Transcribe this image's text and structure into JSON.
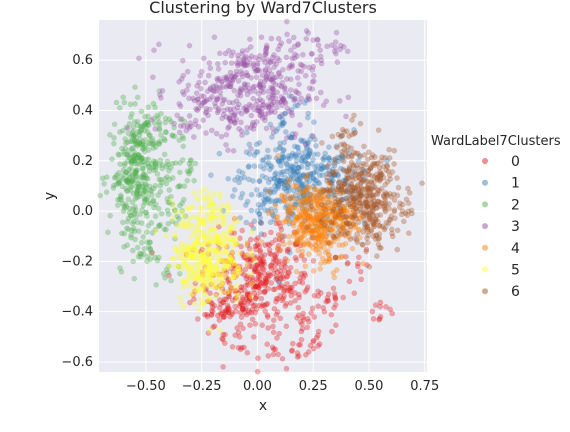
{
  "chart_data": {
    "type": "scatter",
    "title": "Clustering by Ward7Clusters",
    "xlabel": "x",
    "ylabel": "y",
    "xlim": [
      -0.71,
      0.76
    ],
    "ylim": [
      -0.64,
      0.76
    ],
    "xticks": [
      -0.5,
      -0.25,
      0.0,
      0.25,
      0.5,
      0.75
    ],
    "xtick_labels": [
      "−0.50",
      "−0.25",
      "0.00",
      "0.25",
      "0.50",
      "0.75"
    ],
    "yticks": [
      -0.6,
      -0.4,
      -0.2,
      0.0,
      0.2,
      0.4,
      0.6
    ],
    "ytick_labels": [
      "−0.6",
      "−0.4",
      "−0.2",
      "0.0",
      "0.2",
      "0.4",
      "0.6"
    ],
    "grid": true,
    "background": "#eaeaf2",
    "legend": {
      "title": "WardLabel7Clusters",
      "placement": "right"
    },
    "series": [
      {
        "name": "0",
        "color": "#e41a1c",
        "center": [
          -0.02,
          -0.28
        ],
        "spread": [
          0.13,
          0.1
        ],
        "points": [
          [
            -0.15,
            -0.42
          ],
          [
            -0.1,
            -0.38
          ],
          [
            -0.05,
            -0.35
          ],
          [
            0.0,
            -0.3
          ],
          [
            0.05,
            -0.25
          ],
          [
            0.1,
            -0.2
          ],
          [
            0.15,
            -0.32
          ],
          [
            0.2,
            -0.45
          ],
          [
            0.25,
            -0.52
          ],
          [
            0.3,
            -0.4
          ],
          [
            -0.2,
            -0.4
          ],
          [
            0.02,
            -0.18
          ],
          [
            0.08,
            -0.55
          ],
          [
            0.35,
            -0.35
          ],
          [
            0.45,
            -0.22
          ],
          [
            0.55,
            -0.38
          ],
          [
            -0.08,
            -0.5
          ],
          [
            0.12,
            -0.1
          ],
          [
            0.18,
            -0.58
          ]
        ]
      },
      {
        "name": "1",
        "color": "#377eb8",
        "center": [
          0.17,
          0.12
        ],
        "spread": [
          0.13,
          0.1
        ],
        "points": [
          [
            0.05,
            0.05
          ],
          [
            0.1,
            0.12
          ],
          [
            0.15,
            0.18
          ],
          [
            0.2,
            0.1
          ],
          [
            0.25,
            0.15
          ],
          [
            0.3,
            0.08
          ],
          [
            0.35,
            0.2
          ],
          [
            0.12,
            0.35
          ],
          [
            0.18,
            0.42
          ],
          [
            0.0,
            0.0
          ],
          [
            0.4,
            0.12
          ],
          [
            0.22,
            0.25
          ],
          [
            -0.02,
            0.12
          ]
        ]
      },
      {
        "name": "2",
        "color": "#4daf4a",
        "center": [
          -0.52,
          0.14
        ],
        "spread": [
          0.07,
          0.13
        ],
        "points": [
          [
            -0.62,
            0.12
          ],
          [
            -0.58,
            0.2
          ],
          [
            -0.55,
            0.28
          ],
          [
            -0.5,
            0.35
          ],
          [
            -0.45,
            0.38
          ],
          [
            -0.6,
            0.0
          ],
          [
            -0.55,
            -0.08
          ],
          [
            -0.48,
            -0.15
          ],
          [
            -0.42,
            -0.25
          ],
          [
            -0.38,
            0.3
          ],
          [
            -0.35,
            0.1
          ],
          [
            -0.4,
            -0.05
          ],
          [
            -0.3,
            0.2
          ]
        ]
      },
      {
        "name": "3",
        "color": "#984ea3",
        "center": [
          -0.05,
          0.48
        ],
        "spread": [
          0.16,
          0.1
        ],
        "points": [
          [
            -0.25,
            0.42
          ],
          [
            -0.2,
            0.48
          ],
          [
            -0.12,
            0.52
          ],
          [
            -0.05,
            0.55
          ],
          [
            0.0,
            0.58
          ],
          [
            0.05,
            0.6
          ],
          [
            0.15,
            0.64
          ],
          [
            0.25,
            0.68
          ],
          [
            0.35,
            0.65
          ],
          [
            -0.1,
            0.35
          ],
          [
            0.0,
            0.4
          ],
          [
            0.1,
            0.5
          ],
          [
            -0.3,
            0.35
          ],
          [
            0.2,
            0.58
          ]
        ]
      },
      {
        "name": "4",
        "color": "#ff7f00",
        "center": [
          0.27,
          -0.03
        ],
        "spread": [
          0.09,
          0.07
        ],
        "points": [
          [
            0.15,
            0.0
          ],
          [
            0.2,
            -0.05
          ],
          [
            0.25,
            -0.08
          ],
          [
            0.3,
            0.02
          ],
          [
            0.35,
            -0.02
          ],
          [
            0.28,
            -0.15
          ],
          [
            0.22,
            0.05
          ],
          [
            0.4,
            0.0
          ],
          [
            0.18,
            -0.12
          ],
          [
            0.32,
            -0.2
          ]
        ]
      },
      {
        "name": "5",
        "color": "#ffff33",
        "center": [
          -0.22,
          -0.17
        ],
        "spread": [
          0.08,
          0.1
        ],
        "points": [
          [
            -0.28,
            -0.25
          ],
          [
            -0.25,
            -0.3
          ],
          [
            -0.22,
            -0.2
          ],
          [
            -0.18,
            -0.1
          ],
          [
            -0.15,
            -0.05
          ],
          [
            -0.2,
            0.0
          ],
          [
            -0.3,
            -0.15
          ],
          [
            -0.12,
            -0.2
          ],
          [
            -0.22,
            0.05
          ],
          [
            -0.32,
            -0.05
          ]
        ]
      },
      {
        "name": "6",
        "color": "#a65628",
        "center": [
          0.47,
          0.05
        ],
        "spread": [
          0.09,
          0.1
        ],
        "points": [
          [
            0.4,
            0.05
          ],
          [
            0.45,
            0.0
          ],
          [
            0.5,
            0.08
          ],
          [
            0.55,
            0.02
          ],
          [
            0.6,
            -0.02
          ],
          [
            0.48,
            0.15
          ],
          [
            0.42,
            0.25
          ],
          [
            0.65,
            0.0
          ],
          [
            0.52,
            -0.1
          ],
          [
            0.38,
            0.3
          ],
          [
            0.58,
            0.18
          ]
        ]
      }
    ],
    "marker_alpha": 0.35
  }
}
